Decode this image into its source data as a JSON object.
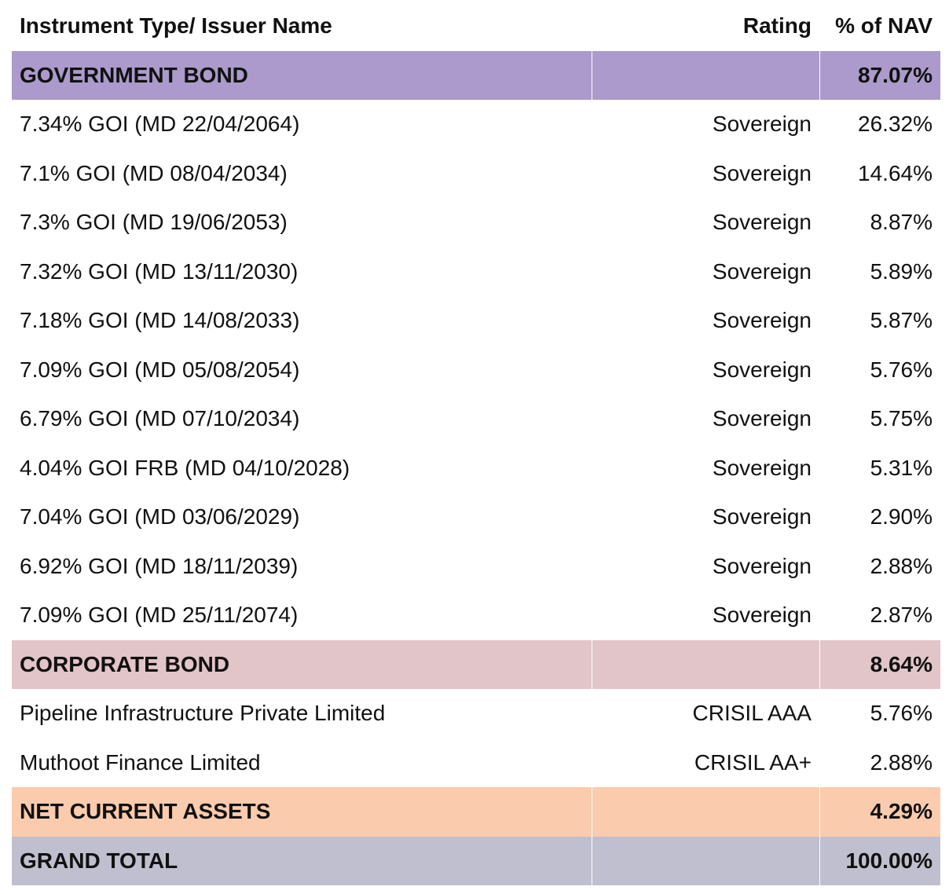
{
  "header": {
    "name": "Instrument Type/ Issuer Name",
    "rating": "Rating",
    "nav": "% of NAV"
  },
  "sections": [
    {
      "title": "GOVERNMENT BOND",
      "total": "87.07%",
      "color": "#ab9acb",
      "rows": [
        {
          "name": "7.34% GOI (MD 22/04/2064)",
          "rating": "Sovereign",
          "nav": "26.32%"
        },
        {
          "name": "7.1% GOI (MD 08/04/2034)",
          "rating": "Sovereign",
          "nav": "14.64%"
        },
        {
          "name": "7.3% GOI (MD 19/06/2053)",
          "rating": "Sovereign",
          "nav": "8.87%"
        },
        {
          "name": "7.32% GOI (MD 13/11/2030)",
          "rating": "Sovereign",
          "nav": "5.89%"
        },
        {
          "name": "7.18% GOI (MD 14/08/2033)",
          "rating": "Sovereign",
          "nav": "5.87%"
        },
        {
          "name": "7.09% GOI (MD 05/08/2054)",
          "rating": "Sovereign",
          "nav": "5.76%"
        },
        {
          "name": "6.79% GOI (MD 07/10/2034)",
          "rating": "Sovereign",
          "nav": "5.75%"
        },
        {
          "name": "4.04% GOI FRB (MD 04/10/2028)",
          "rating": "Sovereign",
          "nav": "5.31%"
        },
        {
          "name": "7.04% GOI (MD 03/06/2029)",
          "rating": "Sovereign",
          "nav": "2.90%"
        },
        {
          "name": "6.92% GOI (MD 18/11/2039)",
          "rating": "Sovereign",
          "nav": "2.88%"
        },
        {
          "name": "7.09% GOI (MD 25/11/2074)",
          "rating": "Sovereign",
          "nav": "2.87%"
        }
      ]
    },
    {
      "title": "CORPORATE BOND",
      "total": "8.64%",
      "color": "#e2c5c9",
      "rows": [
        {
          "name": "Pipeline Infrastructure Private Limited",
          "rating": "CRISIL AAA",
          "nav": "5.76%"
        },
        {
          "name": "Muthoot Finance Limited",
          "rating": "CRISIL AA+",
          "nav": "2.88%"
        }
      ]
    },
    {
      "title": "NET CURRENT ASSETS",
      "total": "4.29%",
      "color": "#fbcbae",
      "rows": []
    },
    {
      "title": "GRAND TOTAL",
      "total": "100.00%",
      "color": "#c0bfcf",
      "rows": []
    }
  ]
}
